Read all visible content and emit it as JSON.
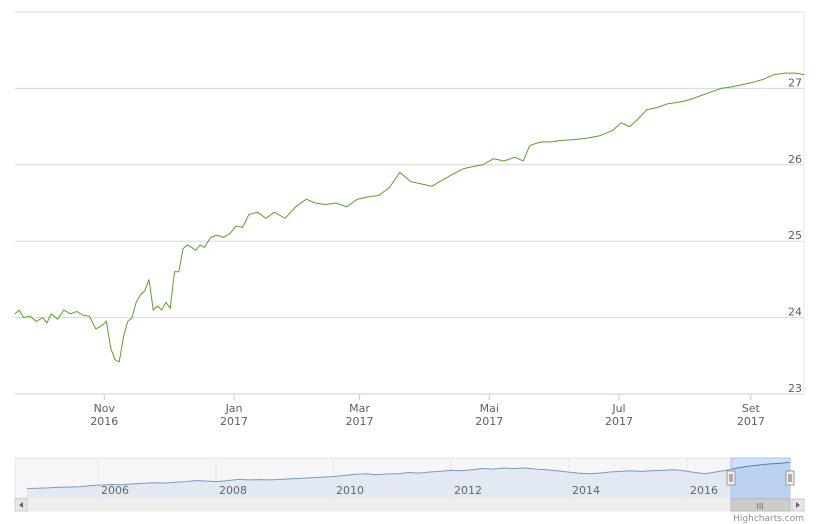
{
  "chart_data": {
    "type": "line",
    "title": "",
    "xlabel": "",
    "ylabel": "",
    "ylim": [
      23,
      28
    ],
    "y_ticks": [
      "23",
      "24",
      "25",
      "26",
      "27"
    ],
    "x_ticks": [
      {
        "month": "Nov",
        "year": "2016",
        "date": "2016-11-01"
      },
      {
        "month": "Jan",
        "year": "2017",
        "date": "2017-01-01"
      },
      {
        "month": "Mar",
        "year": "2017",
        "date": "2017-03-01"
      },
      {
        "month": "Mai",
        "year": "2017",
        "date": "2017-05-01"
      },
      {
        "month": "Jul",
        "year": "2017",
        "date": "2017-07-01"
      },
      {
        "month": "Set",
        "year": "2017",
        "date": "2017-09-01"
      }
    ],
    "xlim": [
      "2016-09-20",
      "2017-09-26"
    ],
    "grid": true,
    "line_color": "#5aa02c",
    "series": [
      {
        "x": [
          "2016-09-20",
          "2016-09-22",
          "2016-09-24",
          "2016-09-27",
          "2016-09-30",
          "2016-10-03",
          "2016-10-05",
          "2016-10-07",
          "2016-10-10",
          "2016-10-13",
          "2016-10-16",
          "2016-10-19",
          "2016-10-22",
          "2016-10-25",
          "2016-10-28",
          "2016-10-31",
          "2016-11-02",
          "2016-11-04",
          "2016-11-06",
          "2016-11-08",
          "2016-11-10",
          "2016-11-12",
          "2016-11-14",
          "2016-11-16",
          "2016-11-18",
          "2016-11-20",
          "2016-11-22",
          "2016-11-24",
          "2016-11-26",
          "2016-11-28",
          "2016-11-30",
          "2016-12-02",
          "2016-12-04",
          "2016-12-06",
          "2016-12-08",
          "2016-12-10",
          "2016-12-12",
          "2016-12-14",
          "2016-12-16",
          "2016-12-18",
          "2016-12-21",
          "2016-12-24",
          "2016-12-27",
          "2016-12-30",
          "2017-01-02",
          "2017-01-05",
          "2017-01-08",
          "2017-01-12",
          "2017-01-16",
          "2017-01-20",
          "2017-01-25",
          "2017-01-30",
          "2017-02-04",
          "2017-02-08",
          "2017-02-13",
          "2017-02-18",
          "2017-02-23",
          "2017-02-28",
          "2017-03-05",
          "2017-03-10",
          "2017-03-15",
          "2017-03-20",
          "2017-03-25",
          "2017-03-30",
          "2017-04-04",
          "2017-04-09",
          "2017-04-14",
          "2017-04-19",
          "2017-04-24",
          "2017-04-28",
          "2017-05-03",
          "2017-05-08",
          "2017-05-13",
          "2017-05-17",
          "2017-05-20",
          "2017-05-23",
          "2017-05-26",
          "2017-05-30",
          "2017-06-04",
          "2017-06-10",
          "2017-06-16",
          "2017-06-22",
          "2017-06-28",
          "2017-07-02",
          "2017-07-06",
          "2017-07-10",
          "2017-07-14",
          "2017-07-19",
          "2017-07-24",
          "2017-07-29",
          "2017-08-03",
          "2017-08-08",
          "2017-08-13",
          "2017-08-18",
          "2017-08-23",
          "2017-08-28",
          "2017-09-02",
          "2017-09-07",
          "2017-09-12",
          "2017-09-17",
          "2017-09-22",
          "2017-09-26"
        ],
        "y": [
          24.05,
          24.1,
          24.0,
          24.02,
          23.95,
          24.0,
          23.93,
          24.05,
          23.98,
          24.1,
          24.05,
          24.08,
          24.03,
          24.02,
          23.85,
          23.9,
          23.95,
          23.6,
          23.45,
          23.42,
          23.75,
          23.95,
          24.0,
          24.2,
          24.3,
          24.35,
          24.5,
          24.1,
          24.15,
          24.1,
          24.2,
          24.12,
          24.6,
          24.6,
          24.9,
          24.95,
          24.92,
          24.88,
          24.95,
          24.92,
          25.05,
          25.08,
          25.05,
          25.1,
          25.2,
          25.18,
          25.35,
          25.38,
          25.3,
          25.38,
          25.3,
          25.45,
          25.55,
          25.5,
          25.48,
          25.5,
          25.45,
          25.55,
          25.58,
          25.6,
          25.7,
          25.9,
          25.78,
          25.75,
          25.72,
          25.8,
          25.88,
          25.95,
          25.98,
          26.0,
          26.08,
          26.05,
          26.1,
          26.05,
          26.25,
          26.28,
          26.3,
          26.3,
          26.32,
          26.33,
          26.35,
          26.38,
          26.45,
          26.55,
          26.5,
          26.6,
          26.72,
          26.75,
          26.8,
          26.82,
          26.85,
          26.9,
          26.95,
          27.0,
          27.02,
          27.05,
          27.08,
          27.12,
          27.18,
          27.2,
          27.2,
          27.18
        ]
      }
    ],
    "navigator": {
      "x_ticks": [
        "2006",
        "2008",
        "2010",
        "2012",
        "2014",
        "2016"
      ],
      "series_y": [
        18.0,
        18.05,
        18.1,
        18.2,
        18.25,
        18.3,
        18.5,
        18.6,
        18.7,
        18.65,
        18.8,
        18.9,
        19.0,
        18.95,
        19.1,
        19.2,
        19.4,
        19.3,
        19.2,
        19.4,
        19.6,
        19.5,
        19.55,
        19.5,
        19.6,
        19.7,
        19.8,
        19.9,
        20.0,
        20.1,
        20.3,
        20.5,
        20.6,
        20.4,
        20.55,
        20.6,
        20.8,
        20.7,
        20.9,
        21.0,
        21.2,
        21.1,
        21.3,
        21.5,
        21.4,
        21.6,
        21.5,
        21.6,
        21.4,
        21.3,
        21.1,
        20.9,
        20.7,
        20.6,
        20.7,
        20.9,
        21.0,
        21.1,
        21.0,
        21.1,
        21.2,
        21.3,
        21.1,
        20.8,
        20.6,
        20.9,
        21.2,
        21.6,
        21.9,
        22.1,
        22.3,
        22.4,
        22.6
      ]
    },
    "scrollbar_grip": "III",
    "credits": "Highcharts.com"
  }
}
